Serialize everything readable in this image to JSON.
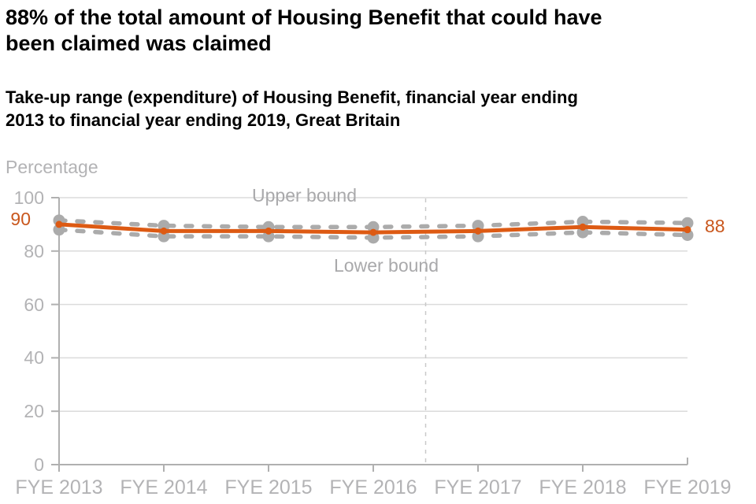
{
  "header": {
    "title_lines": [
      "88% of the total amount of Housing Benefit that could have",
      "been claimed was claimed"
    ],
    "subtitle_lines": [
      "Take-up range (expenditure) of Housing Benefit, financial year ending",
      "2013 to financial year ending 2019, Great Britain"
    ]
  },
  "chart_data": {
    "type": "line",
    "title": "88% of the total amount of Housing Benefit that could have been claimed was claimed",
    "subtitle": "Take-up range (expenditure) of Housing Benefit, financial year ending 2013 to financial year ending 2019, Great Britain",
    "unit_label": "Percentage",
    "categories": [
      "FYE 2013",
      "FYE 2014",
      "FYE 2015",
      "FYE 2016",
      "FYE 2017",
      "FYE 2018",
      "FYE 2019"
    ],
    "y_ticks": [
      0,
      20,
      40,
      60,
      80,
      100
    ],
    "ylim": [
      0,
      100
    ],
    "grid": "horizontal",
    "legend": "inline-labels",
    "series": [
      {
        "name": "Upper bound",
        "role": "upper-bound",
        "style": "dashed",
        "color": "#ababab",
        "values": [
          91.5,
          89.5,
          89,
          89,
          89.5,
          91,
          90.5
        ]
      },
      {
        "name": "",
        "role": "central-estimate",
        "style": "solid",
        "color": "#dd5a13",
        "values": [
          90,
          87.5,
          87.5,
          87,
          87.5,
          89,
          88
        ]
      },
      {
        "name": "Lower bound",
        "role": "lower-bound",
        "style": "dashed",
        "color": "#ababab",
        "values": [
          88,
          85.5,
          85.5,
          85,
          85.5,
          87,
          86
        ]
      }
    ],
    "annotations": {
      "first_point_label": "90",
      "last_point_label": "88",
      "upper_bound_label": "Upper bound",
      "lower_bound_label": "Lower bound"
    },
    "reference_line": {
      "between": [
        "FYE 2016",
        "FYE 2017"
      ],
      "style": "dashed-vertical"
    }
  },
  "colors": {
    "accent_orange": "#dd5a13",
    "value_label_orange": "#c9571d",
    "bound_gray": "#ababab",
    "text_gray": "#b3b3b5",
    "bound_label_gray": "#a9a9ab",
    "gridline": "#dbdbdb",
    "axis": "#b0b0b0",
    "reference_line": "#c9c9c9",
    "title_black": "#000000"
  }
}
